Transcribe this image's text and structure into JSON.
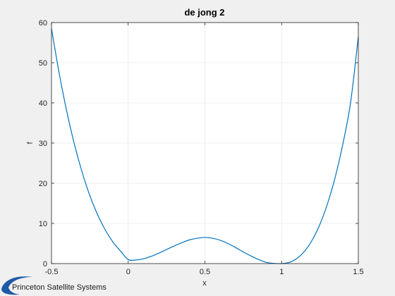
{
  "chart_data": {
    "type": "line",
    "title": "de jong 2",
    "xlabel": "x",
    "ylabel": "f",
    "xlim": [
      -0.5,
      1.5
    ],
    "ylim": [
      0,
      60
    ],
    "xticks": [
      -0.5,
      0,
      0.5,
      1,
      1.5
    ],
    "xtick_labels": [
      "-0.5",
      "0",
      "0.5",
      "1",
      "1.5"
    ],
    "yticks": [
      0,
      10,
      20,
      30,
      40,
      50,
      60
    ],
    "ytick_labels": [
      "0",
      "10",
      "20",
      "30",
      "40",
      "50",
      "60"
    ],
    "grid": true,
    "series": [
      {
        "color": "#0072bd",
        "x": [
          -0.5,
          -0.45,
          -0.4,
          -0.35,
          -0.3,
          -0.25,
          -0.2,
          -0.15,
          -0.1,
          -0.05,
          0,
          0.05,
          0.1,
          0.15,
          0.2,
          0.25,
          0.3,
          0.35,
          0.4,
          0.45,
          0.5,
          0.55,
          0.6,
          0.65,
          0.7,
          0.75,
          0.8,
          0.85,
          0.9,
          0.95,
          1,
          1.05,
          1.1,
          1.15,
          1.2,
          1.25,
          1.3,
          1.35,
          1.4,
          1.45,
          1.5
        ],
        "y": [
          58.5,
          47.4,
          37.8,
          29.6,
          22.7,
          16.9,
          12.2,
          8.4,
          5.4,
          3.1,
          1.0,
          0.9,
          1.2,
          1.8,
          2.6,
          3.5,
          4.4,
          5.2,
          5.9,
          6.3,
          6.5,
          6.3,
          5.8,
          5.0,
          4.0,
          2.9,
          1.9,
          1.0,
          0.3,
          0.05,
          0,
          0.3,
          1.3,
          3.1,
          5.9,
          9.8,
          15.0,
          21.6,
          29.9,
          40.2,
          56.5
        ]
      }
    ]
  },
  "branding": {
    "logo_text": "Princeton Satellite Systems",
    "logo_color": "#1e5aa8"
  }
}
